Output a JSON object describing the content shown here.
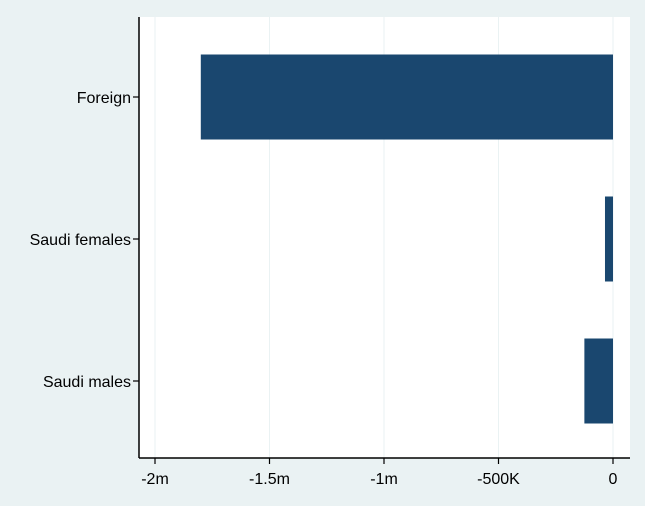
{
  "chart_data": {
    "type": "bar",
    "orientation": "horizontal",
    "categories": [
      "Foreign",
      "Saudi females",
      "Saudi males"
    ],
    "values": [
      -1800000,
      -35000,
      -125000
    ],
    "xlim": [
      -2000000,
      0
    ],
    "xticks": [
      {
        "value": -2000000,
        "label": "-2m"
      },
      {
        "value": -1500000,
        "label": "-1.5m"
      },
      {
        "value": -1000000,
        "label": "-1m"
      },
      {
        "value": -500000,
        "label": "-500K"
      },
      {
        "value": 0,
        "label": "0"
      }
    ],
    "grid": true,
    "title": "",
    "xlabel": "",
    "ylabel": "",
    "colors": {
      "bar": "#1a476f",
      "background": "#eaf2f3",
      "plot_background": "#ffffff",
      "grid": "#eaf2f3"
    }
  }
}
